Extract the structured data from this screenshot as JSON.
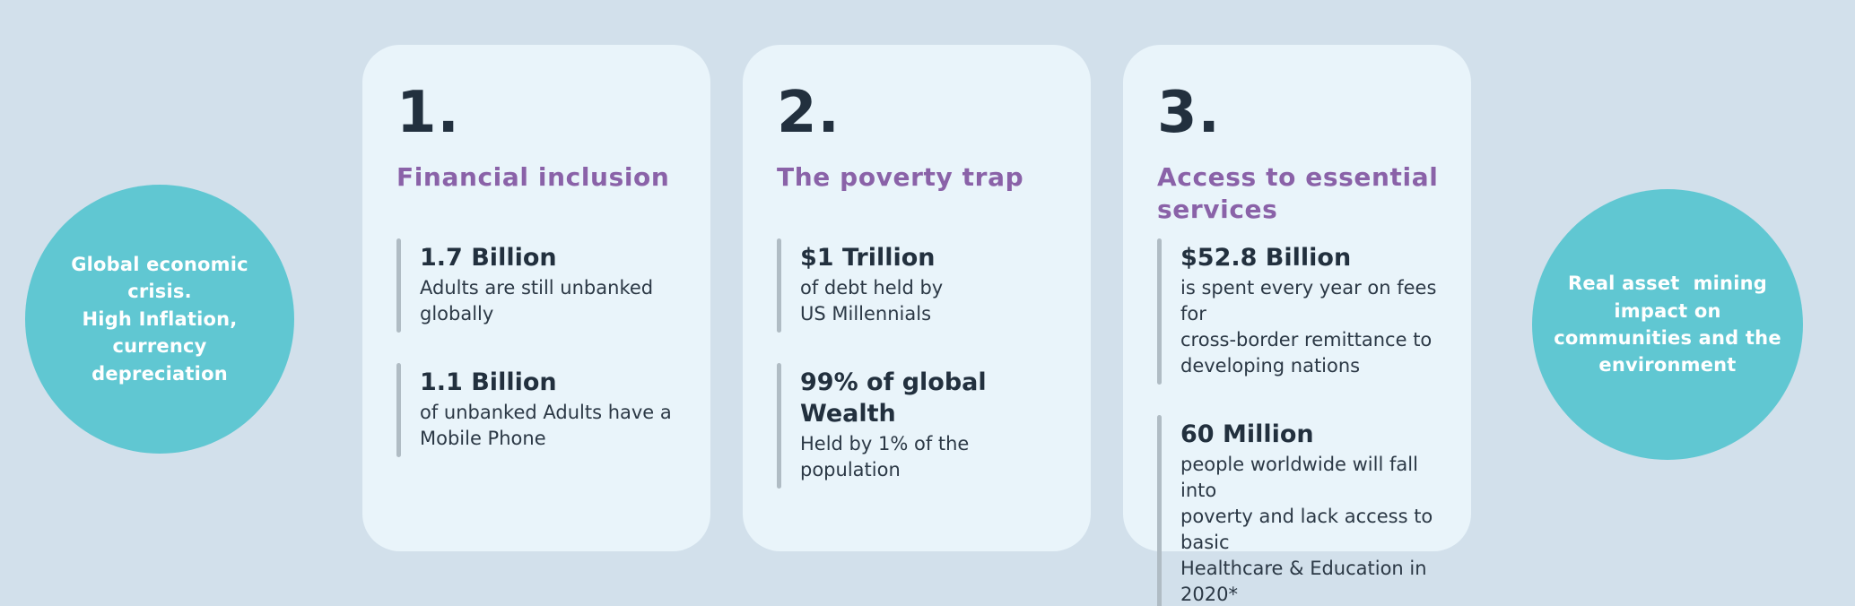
{
  "colors": {
    "background": "#d2e0eb",
    "card_background": "#e9f4fa",
    "circle_teal": "#60c7d2",
    "heading_purple": "#8a62a8",
    "text_navy": "#22303e",
    "stat_bar_gray": "#b0bcc4",
    "circle_text": "#ffffff"
  },
  "left_circle": {
    "text": "Global economic\ncrisis.\nHigh Inflation,\ncurrency\ndepreciation"
  },
  "right_circle": {
    "text": "Real asset  mining\nimpact on\ncommunities and the\nenvironment"
  },
  "cards": [
    {
      "number": "1.",
      "title": "Financial inclusion",
      "stats": [
        {
          "value": "1.7 Billion",
          "desc": "Adults are still unbanked\nglobally"
        },
        {
          "value": "1.1 Billion",
          "desc": "of unbanked Adults have a\nMobile Phone"
        }
      ]
    },
    {
      "number": "2.",
      "title": "The poverty trap",
      "stats": [
        {
          "value": "$1 Trillion",
          "desc": "of debt held by\nUS Millennials"
        },
        {
          "value": "99% of global Wealth",
          "desc": "Held by 1% of the\npopulation"
        }
      ]
    },
    {
      "number": "3.",
      "title": "Access to essential\nservices",
      "stats": [
        {
          "value": "$52.8 Billion",
          "desc": "is spent every year on fees for\ncross-border remittance to\ndeveloping nations"
        },
        {
          "value": "60 Million",
          "desc": "people worldwide will fall into\npoverty and lack access to basic\nHealthcare & Education in 2020*"
        }
      ]
    }
  ]
}
